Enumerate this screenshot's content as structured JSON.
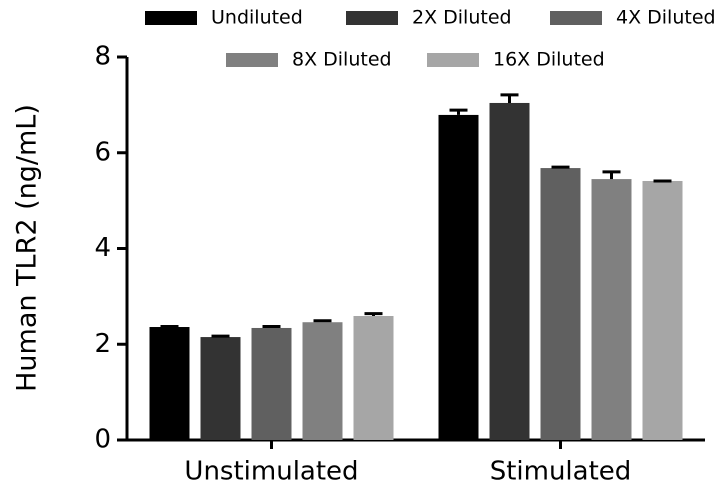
{
  "chart_data": {
    "type": "bar",
    "y_label": "Human TLR2 (ng/mL)",
    "categories": [
      "Unstimulated",
      "Stimulated"
    ],
    "series": [
      {
        "name": "Undiluted",
        "color": "#000000",
        "values": [
          2.36,
          6.79
        ],
        "errors": [
          0.01,
          0.1
        ]
      },
      {
        "name": "2X Diluted",
        "color": "#333333",
        "values": [
          2.15,
          7.04
        ],
        "errors": [
          0.02,
          0.17
        ]
      },
      {
        "name": "4X Diluted",
        "color": "#606060",
        "values": [
          2.34,
          5.68
        ],
        "errors": [
          0.03,
          0.02
        ]
      },
      {
        "name": "8X Diluted",
        "color": "#808080",
        "values": [
          2.46,
          5.45
        ],
        "errors": [
          0.03,
          0.15
        ]
      },
      {
        "name": "16X Diluted",
        "color": "#a6a6a6",
        "values": [
          2.59,
          5.41
        ],
        "errors": [
          0.05,
          0
        ]
      }
    ],
    "ylim": [
      0,
      8
    ],
    "yticks": [
      0,
      2,
      4,
      6,
      8
    ],
    "grid": false
  }
}
